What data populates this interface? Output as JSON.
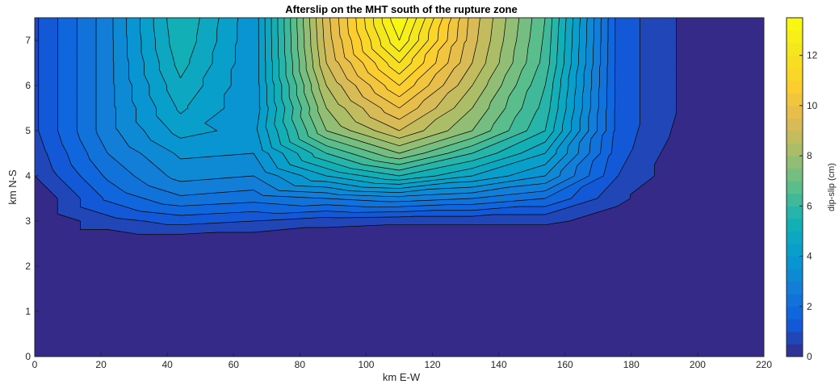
{
  "chart_data": {
    "type": "heatmap",
    "title": "Afterslip on the MHT south of the rupture zone",
    "xlabel": "km E-W",
    "ylabel": "km N-S",
    "xlim": [
      0,
      220
    ],
    "ylim": [
      0,
      7.5
    ],
    "xticks": [
      "0",
      "20",
      "40",
      "60",
      "80",
      "100",
      "120",
      "140",
      "160",
      "180",
      "200",
      "220"
    ],
    "yticks": [
      "0",
      "1",
      "2",
      "3",
      "4",
      "5",
      "6",
      "7"
    ],
    "colorbar": {
      "label": "dip-slip (cm)",
      "range": [
        0,
        13.5
      ],
      "ticks": [
        "0",
        "2",
        "4",
        "6",
        "8",
        "10",
        "12"
      ],
      "colormap": "parula"
    },
    "grid": {
      "x": [
        0,
        22,
        44,
        66,
        88,
        110,
        132,
        154,
        176,
        198,
        220
      ],
      "y": [
        0,
        0.5,
        1,
        1.5,
        2,
        2.5,
        3,
        3.5,
        4,
        4.5,
        5,
        5.5,
        6,
        6.5,
        7,
        7.5
      ],
      "values": [
        [
          0,
          0,
          0,
          0,
          0,
          0,
          0,
          0,
          0,
          0,
          0
        ],
        [
          0,
          0,
          0,
          0,
          0,
          0,
          0,
          0,
          0,
          0,
          0
        ],
        [
          0,
          0,
          0,
          0,
          0,
          0,
          0,
          0,
          0,
          0,
          0
        ],
        [
          0,
          0,
          0,
          0,
          0,
          0,
          0,
          0,
          0,
          0,
          0
        ],
        [
          0,
          0,
          0,
          0,
          0,
          0,
          0,
          0,
          0,
          0,
          0
        ],
        [
          0,
          0,
          0,
          0,
          0,
          0,
          0,
          0,
          0,
          0,
          0
        ],
        [
          0,
          0.8,
          1.2,
          1.0,
          0.7,
          0.6,
          0.6,
          0.6,
          0.3,
          0,
          0
        ],
        [
          0,
          1.6,
          2.4,
          2.2,
          2.5,
          2.8,
          2.5,
          2.0,
          0.6,
          0,
          0
        ],
        [
          0.5,
          2.1,
          3.2,
          3.0,
          4.5,
          5.5,
          4.5,
          3.5,
          1.0,
          0,
          0
        ],
        [
          0.7,
          2.5,
          3.6,
          3.5,
          6.0,
          7.5,
          6.0,
          4.5,
          1.2,
          0,
          0
        ],
        [
          0.9,
          2.8,
          4.2,
          3.8,
          7.5,
          9.0,
          7.5,
          5.5,
          1.3,
          0.2,
          0
        ],
        [
          0.9,
          2.8,
          4.6,
          3.6,
          8.0,
          10.0,
          8.0,
          5.8,
          1.3,
          0.3,
          0
        ],
        [
          0.9,
          2.8,
          4.9,
          3.6,
          8.5,
          11.0,
          8.5,
          6.0,
          1.3,
          0.3,
          0
        ],
        [
          0.9,
          2.8,
          5.2,
          3.6,
          9.0,
          12.0,
          9.0,
          6.3,
          1.3,
          0.3,
          0
        ],
        [
          0.9,
          2.8,
          5.4,
          3.6,
          9.2,
          13.0,
          9.2,
          6.4,
          1.3,
          0.3,
          0
        ],
        [
          0.9,
          2.8,
          5.5,
          3.6,
          9.3,
          13.5,
          9.3,
          6.5,
          1.3,
          0.3,
          0
        ]
      ]
    },
    "contour_levels": [
      0,
      0.5,
      1,
      1.5,
      2,
      2.5,
      3,
      3.5,
      4,
      4.5,
      5,
      5.5,
      6,
      6.5,
      7,
      7.5,
      8,
      8.5,
      9,
      9.5,
      10,
      10.5,
      11,
      11.5,
      12,
      12.5,
      13,
      13.5
    ]
  }
}
